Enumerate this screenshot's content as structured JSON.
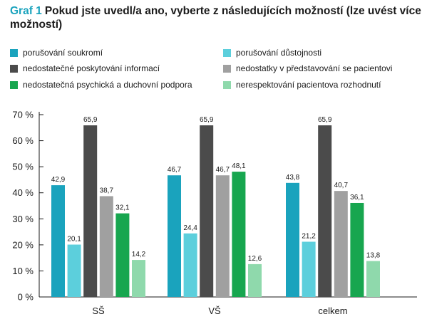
{
  "title": {
    "lead": "Graf 1",
    "text": "Pokud jste uvedl/a ano, vyberte z následujících možností (lze uvést více možností)"
  },
  "chart_data": {
    "type": "bar",
    "categories": [
      "SŠ",
      "VŠ",
      "celkem"
    ],
    "series": [
      {
        "name": "porušování soukromí",
        "color": "#1aa3bd",
        "values": [
          42.9,
          46.7,
          43.8
        ]
      },
      {
        "name": "porušování důstojnosti",
        "color": "#5ccfdc",
        "values": [
          20.1,
          24.4,
          21.2
        ]
      },
      {
        "name": "nedostatečné poskytování informací",
        "color": "#4b4b4b",
        "values": [
          65.9,
          65.9,
          65.9
        ]
      },
      {
        "name": "nedostatky v představování se pacientovi",
        "color": "#a0a0a0",
        "values": [
          38.7,
          46.7,
          40.7
        ]
      },
      {
        "name": "nedostatečná psychická a duchovní podpora",
        "color": "#17a64f",
        "values": [
          32.1,
          48.1,
          36.1
        ]
      },
      {
        "name": "nerespektování pacientova rozhodnutí",
        "color": "#8fd9ac",
        "values": [
          14.2,
          12.6,
          13.8
        ]
      }
    ],
    "value_labels": [
      [
        "42,9",
        "46,7",
        "43,8"
      ],
      [
        "20,1",
        "24,4",
        "21,2"
      ],
      [
        "65,9",
        "65,9",
        "65,9"
      ],
      [
        "38,7",
        "46,7",
        "40,7"
      ],
      [
        "32,1",
        "48,1",
        "36,1"
      ],
      [
        "14,2",
        "12,6",
        "13,8"
      ]
    ],
    "ylim": [
      0,
      70
    ],
    "yticks": [
      "0 %",
      "10 %",
      "20 %",
      "30 %",
      "40 %",
      "50 %",
      "60 %",
      "70 %"
    ],
    "grid": false,
    "legend_position": "top"
  }
}
